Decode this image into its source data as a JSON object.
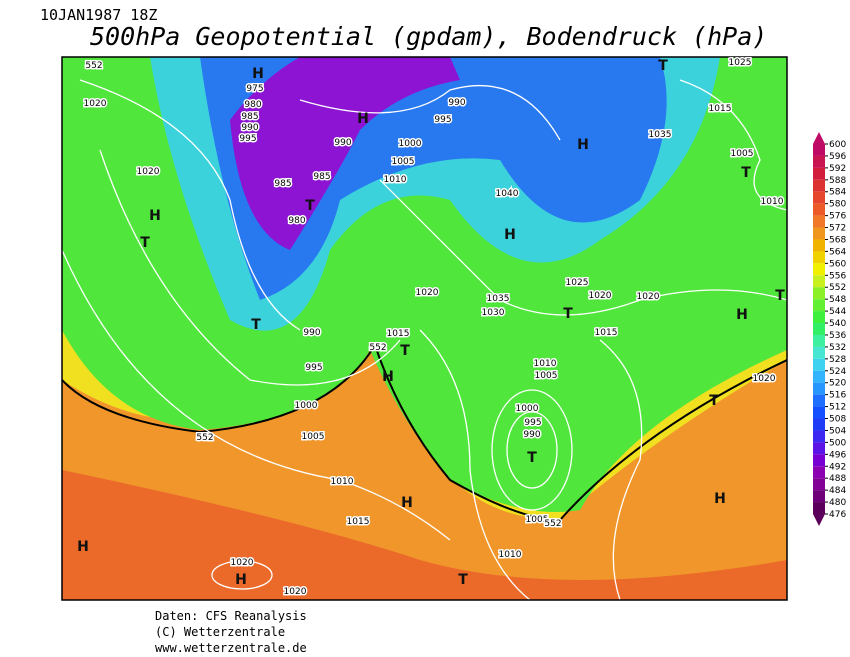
{
  "header": {
    "date": "10JAN1987 18Z",
    "title": "500hPa Geopotential (gpdam), Bodendruck (hPa)"
  },
  "map": {
    "labels": [
      "1020",
      "975",
      "980",
      "985",
      "990",
      "995",
      "H",
      "H",
      "990",
      "985",
      "985",
      "980",
      "T",
      "1020",
      "H",
      "T",
      "990",
      "995",
      "1000",
      "1005",
      "1010",
      "1040",
      "H",
      "H",
      "1035",
      "1015",
      "1005",
      "T",
      "1010",
      "T",
      "1025",
      "1020",
      "1035",
      "1030",
      "1025",
      "1020",
      "1020",
      "T",
      "H",
      "T",
      "990",
      "T",
      "995",
      "1015",
      "T",
      "H",
      "1015",
      "1010",
      "1005",
      "1000",
      "1005",
      "1000",
      "995",
      "990",
      "T",
      "T",
      "1020",
      "1010",
      "H",
      "H",
      "1015",
      "1005",
      "1010",
      "H",
      "1020",
      "H",
      "1020",
      "T",
      "552",
      "552",
      "552",
      "552"
    ]
  },
  "colorbar": {
    "ticks": [
      600,
      596,
      592,
      588,
      584,
      580,
      576,
      572,
      568,
      564,
      560,
      556,
      552,
      548,
      544,
      540,
      536,
      532,
      528,
      524,
      520,
      516,
      512,
      508,
      504,
      500,
      496,
      492,
      488,
      484,
      480,
      476
    ],
    "colors": [
      "#be0a64",
      "#c81450",
      "#d21e3c",
      "#dc3232",
      "#e6462d",
      "#eb5a28",
      "#f07828",
      "#f0961e",
      "#f0b400",
      "#f0d200",
      "#f0f000",
      "#c8f01e",
      "#8cf028",
      "#64f032",
      "#3cf03c",
      "#32f064",
      "#3cf0a0",
      "#46e6d2",
      "#3cd2f0",
      "#32b4ff",
      "#2896ff",
      "#1e6eff",
      "#1450ff",
      "#1e3cf5",
      "#3c28f0",
      "#5a14e6",
      "#7800d2",
      "#8c00b4",
      "#820096",
      "#6e0078",
      "#5a005a"
    ]
  },
  "footer": {
    "lines": [
      "Daten: CFS Reanalysis",
      "(C) Wetterzentrale",
      "www.wetterzentrale.de"
    ]
  }
}
